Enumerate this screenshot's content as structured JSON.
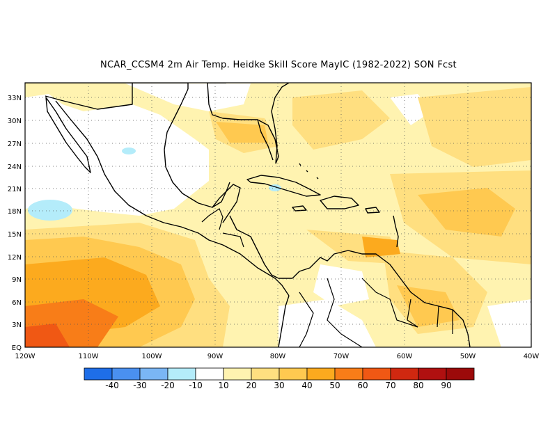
{
  "title": "NCAR_CCSM4  2m Air Temp. Heidke Skill Score MayIC (1982-2022) SON Fcst",
  "map": {
    "lat_ticks": [
      "33N",
      "30N",
      "27N",
      "24N",
      "21N",
      "18N",
      "15N",
      "12N",
      "9N",
      "6N",
      "3N",
      "EQ"
    ],
    "lon_ticks": [
      "120W",
      "110W",
      "100W",
      "90W",
      "80W",
      "70W",
      "60W",
      "50W",
      "40W"
    ],
    "extent": {
      "lon_min": -120,
      "lon_max": -40,
      "lat_min": 0,
      "lat_max": 35
    }
  },
  "colorbar": {
    "labels": [
      "-40",
      "-30",
      "-20",
      "-10",
      "10",
      "20",
      "30",
      "40",
      "50",
      "60",
      "70",
      "80",
      "90"
    ],
    "colors": [
      "#1e6ee8",
      "#4a90f0",
      "#7ab6f5",
      "#b4ecfa",
      "#ffffff",
      "#fff3b0",
      "#ffdf80",
      "#ffc950",
      "#fcaa1e",
      "#f87d18",
      "#f05814",
      "#d02810",
      "#b01010",
      "#9c0a0a"
    ]
  }
}
